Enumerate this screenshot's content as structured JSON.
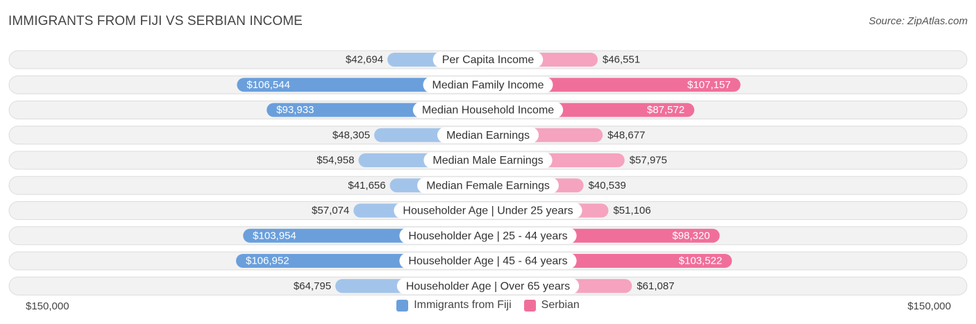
{
  "title": "IMMIGRANTS FROM FIJI VS SERBIAN INCOME",
  "source": "Source: ZipAtlas.com",
  "colors": {
    "fiji_light": "#a3c4ea",
    "fiji_dark": "#6a9fdc",
    "serbian_light": "#f5a3bf",
    "serbian_dark": "#f06f9a",
    "row_bg": "#f2f2f2",
    "row_border": "#dcdcdc"
  },
  "axis": {
    "left_label": "$150,000",
    "right_label": "$150,000"
  },
  "legend": [
    {
      "label": "Immigrants from Fiji",
      "color": "#6a9fdc"
    },
    {
      "label": "Serbian",
      "color": "#f06f9a"
    }
  ],
  "chart_data": {
    "type": "bar",
    "orientation": "diverging-horizontal",
    "title": "IMMIGRANTS FROM FIJI VS SERBIAN INCOME",
    "xlim": [
      -150000,
      150000
    ],
    "categories": [
      "Per Capita Income",
      "Median Family Income",
      "Median Household Income",
      "Median Earnings",
      "Median Male Earnings",
      "Median Female Earnings",
      "Householder Age | Under 25 years",
      "Householder Age | 25 - 44 years",
      "Householder Age | 45 - 64 years",
      "Householder Age | Over 65 years"
    ],
    "series": [
      {
        "name": "Immigrants from Fiji",
        "values": [
          42694,
          106544,
          93933,
          48305,
          54958,
          41656,
          57074,
          103954,
          106952,
          64795
        ],
        "labels": [
          "$42,694",
          "$106,544",
          "$93,933",
          "$48,305",
          "$54,958",
          "$41,656",
          "$57,074",
          "$103,954",
          "$106,952",
          "$64,795"
        ]
      },
      {
        "name": "Serbian",
        "values": [
          46551,
          107157,
          87572,
          48677,
          57975,
          40539,
          51106,
          98320,
          103522,
          61087
        ],
        "labels": [
          "$46,551",
          "$107,157",
          "$87,572",
          "$48,677",
          "$57,975",
          "$40,539",
          "$51,106",
          "$98,320",
          "$103,522",
          "$61,087"
        ]
      }
    ]
  }
}
